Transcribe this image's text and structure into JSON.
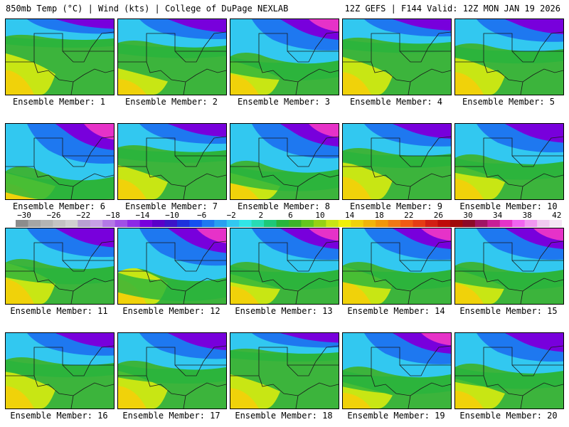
{
  "header": {
    "left": "850mb Temp (°C) | Wind (kts) | College of DuPage NEXLAB",
    "right": "12Z GEFS | F144 Valid: 12Z MON JAN 19 2026"
  },
  "panels": [
    {
      "label": "Ensemble Member: 1"
    },
    {
      "label": "Ensemble Member: 2"
    },
    {
      "label": "Ensemble Member: 3"
    },
    {
      "label": "Ensemble Member: 4"
    },
    {
      "label": "Ensemble Member: 5"
    },
    {
      "label": "Ensemble Member: 6"
    },
    {
      "label": "Ensemble Member: 7"
    },
    {
      "label": "Ensemble Member: 8"
    },
    {
      "label": "Ensemble Member: 9"
    },
    {
      "label": "Ensemble Member: 10"
    },
    {
      "label": "Ensemble Member: 11"
    },
    {
      "label": "Ensemble Member: 12"
    },
    {
      "label": "Ensemble Member: 13"
    },
    {
      "label": "Ensemble Member: 14"
    },
    {
      "label": "Ensemble Member: 15"
    },
    {
      "label": "Ensemble Member: 16"
    },
    {
      "label": "Ensemble Member: 17"
    },
    {
      "label": "Ensemble Member: 18"
    },
    {
      "label": "Ensemble Member: 19"
    },
    {
      "label": "Ensemble Member: 20"
    }
  ],
  "colorbar": {
    "labels": [
      "−30",
      "−26",
      "−22",
      "−18",
      "−14",
      "−10",
      "−6",
      "−2",
      "2",
      "6",
      "10",
      "14",
      "18",
      "22",
      "26",
      "30",
      "34",
      "38",
      "42"
    ],
    "colors": [
      "#8c8c8c",
      "#a5a5a5",
      "#b4b4b4",
      "#c3c3c3",
      "#d0d0d0",
      "#b9a0d2",
      "#c8a0e6",
      "#b478e6",
      "#a050e6",
      "#8c28e6",
      "#7800dc",
      "#5a00c8",
      "#3c14c8",
      "#1e32dc",
      "#1450f0",
      "#1e78f0",
      "#28a0f0",
      "#32c8f0",
      "#32e6e6",
      "#28dcb4",
      "#1ec878",
      "#28b43c",
      "#3cb428",
      "#64c81e",
      "#96d214",
      "#c8e614",
      "#f0f00a",
      "#f0d20a",
      "#f0b40a",
      "#f0960a",
      "#f07814",
      "#f05a14",
      "#e63c14",
      "#d21e14",
      "#be0a0a",
      "#a00a0a",
      "#8c0a28",
      "#a01464",
      "#c81e96",
      "#e632c8",
      "#f064f0",
      "#f096f0",
      "#f0c8f0",
      "#f5e6f5"
    ]
  }
}
